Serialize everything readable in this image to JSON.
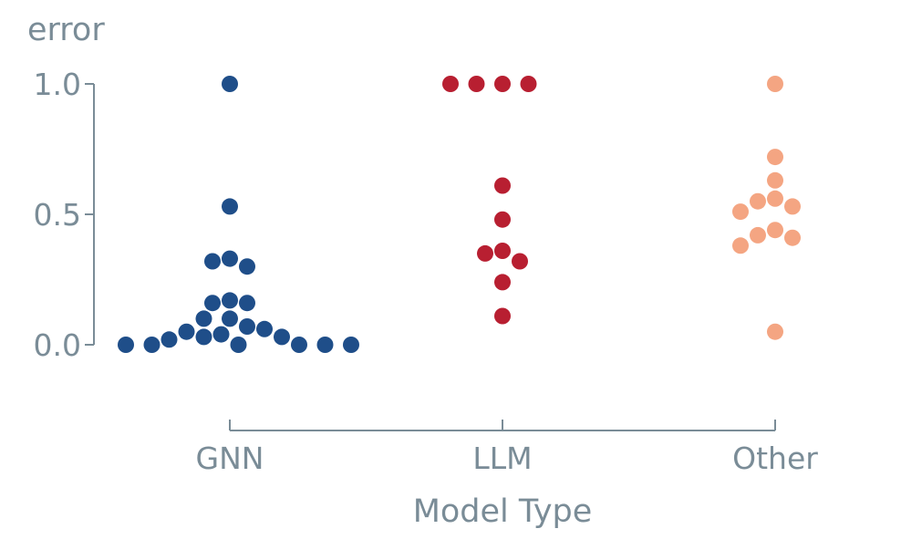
{
  "chart_data": {
    "type": "scatter",
    "title": "",
    "xlabel": "Model Type",
    "ylabel": "error",
    "categories": [
      "GNN",
      "LLM",
      "Other"
    ],
    "ylim": [
      -0.3,
      1.0
    ],
    "yticks": [
      0.0,
      0.5,
      1.0
    ],
    "ytick_labels": [
      "0.0",
      "0.5",
      "1.0"
    ],
    "grid": false,
    "colors": {
      "GNN": "#1f4e89",
      "LLM": "#b81f31",
      "Other": "#f4a582",
      "axis": "#7a8c97"
    },
    "series": [
      {
        "category": "GNN",
        "values": [
          1.0,
          0.53,
          0.33,
          0.32,
          0.3,
          0.17,
          0.16,
          0.16,
          0.1,
          0.1,
          0.07,
          0.06,
          0.05,
          0.04,
          0.03,
          0.03,
          0.02,
          0.0,
          0.0,
          0.0,
          0.0,
          0.0,
          0.0
        ]
      },
      {
        "category": "LLM",
        "values": [
          1.0,
          1.0,
          1.0,
          1.0,
          0.61,
          0.48,
          0.36,
          0.35,
          0.32,
          0.24,
          0.11
        ]
      },
      {
        "category": "Other",
        "values": [
          1.0,
          0.72,
          0.63,
          0.56,
          0.55,
          0.53,
          0.51,
          0.44,
          0.42,
          0.41,
          0.38,
          0.05
        ]
      }
    ]
  }
}
